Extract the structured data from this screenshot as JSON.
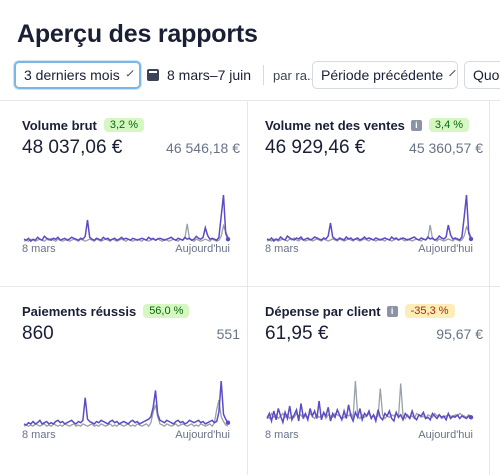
{
  "page": {
    "title": "Aperçu des rapports"
  },
  "filters": {
    "range_value": "3 derniers mois",
    "dates": "8 mars–7 juin",
    "by_label": "par ra...",
    "compare_value": "Période précédente",
    "extra_label": "Quo"
  },
  "colors": {
    "current": "#5b4cc4",
    "previous": "#9aa0aa",
    "positive_bg": "#d7f7c2",
    "negative_bg": "#fcedb9"
  },
  "cards": [
    {
      "title": "Volume brut",
      "info_icon": false,
      "badge": "3,2 %",
      "badge_type": "positive",
      "current": "48 037,06 €",
      "previous": "46 546,18 €",
      "axis_start": "8 mars",
      "axis_end": "Aujourd'hui",
      "series_current": [
        6,
        5,
        7,
        4,
        6,
        5,
        8,
        6,
        5,
        9,
        7,
        6,
        5,
        7,
        6,
        8,
        5,
        6,
        7,
        5,
        6,
        8,
        7,
        6,
        5,
        7,
        6,
        9,
        26,
        8,
        6,
        5,
        7,
        6,
        5,
        8,
        6,
        7,
        5,
        6,
        7,
        5,
        6,
        8,
        6,
        7,
        6,
        5,
        7,
        6,
        5,
        6,
        7,
        6,
        5,
        8,
        6,
        7,
        5,
        6,
        7,
        6,
        5,
        6,
        7,
        8,
        6,
        5,
        7,
        6,
        5,
        8,
        6,
        7,
        5,
        6,
        9,
        7,
        6,
        8,
        18,
        10,
        6,
        7,
        6,
        5,
        8,
        30,
        52,
        12,
        6
      ],
      "series_previous": [
        4,
        5,
        4,
        6,
        5,
        4,
        5,
        6,
        5,
        4,
        6,
        5,
        7,
        5,
        4,
        6,
        5,
        4,
        5,
        6,
        4,
        5,
        6,
        5,
        4,
        6,
        5,
        4,
        5,
        6,
        5,
        4,
        6,
        5,
        4,
        5,
        6,
        5,
        4,
        6,
        5,
        4,
        5,
        6,
        5,
        4,
        6,
        5,
        4,
        5,
        6,
        5,
        4,
        6,
        5,
        4,
        5,
        6,
        5,
        7,
        5,
        4,
        6,
        5,
        4,
        5,
        6,
        5,
        4,
        6,
        5,
        7,
        22,
        6,
        5,
        4,
        6,
        5,
        4,
        5,
        6,
        5,
        4,
        6,
        5,
        4,
        5,
        9,
        20,
        14,
        8
      ]
    },
    {
      "title": "Volume net des ventes",
      "info_icon": true,
      "badge": "3,4 %",
      "badge_type": "positive",
      "current": "46 929,46 €",
      "previous": "45 360,57 €",
      "axis_start": "8 mars",
      "axis_end": "Aujourd'hui",
      "series_current": [
        6,
        5,
        7,
        4,
        6,
        5,
        8,
        6,
        5,
        9,
        7,
        6,
        5,
        7,
        6,
        8,
        5,
        6,
        7,
        5,
        6,
        8,
        7,
        6,
        5,
        7,
        6,
        9,
        22,
        8,
        6,
        5,
        7,
        6,
        5,
        8,
        6,
        7,
        5,
        6,
        7,
        5,
        6,
        8,
        6,
        7,
        6,
        5,
        7,
        6,
        5,
        6,
        7,
        6,
        5,
        8,
        6,
        7,
        5,
        6,
        7,
        6,
        5,
        6,
        7,
        8,
        6,
        5,
        7,
        6,
        5,
        8,
        6,
        7,
        5,
        6,
        9,
        7,
        6,
        8,
        20,
        10,
        6,
        7,
        6,
        5,
        8,
        28,
        50,
        12,
        6
      ],
      "series_previous": [
        4,
        5,
        4,
        6,
        5,
        4,
        5,
        6,
        5,
        4,
        6,
        5,
        7,
        5,
        4,
        6,
        5,
        4,
        5,
        6,
        4,
        5,
        6,
        5,
        4,
        6,
        5,
        4,
        5,
        6,
        5,
        4,
        6,
        5,
        4,
        5,
        6,
        5,
        4,
        6,
        5,
        4,
        5,
        6,
        5,
        4,
        6,
        5,
        4,
        5,
        6,
        5,
        4,
        6,
        5,
        4,
        5,
        6,
        5,
        7,
        5,
        4,
        6,
        5,
        4,
        5,
        6,
        5,
        4,
        6,
        5,
        7,
        20,
        6,
        5,
        4,
        6,
        5,
        4,
        5,
        6,
        5,
        4,
        6,
        5,
        4,
        5,
        9,
        18,
        14,
        8
      ]
    },
    {
      "title": "Paiements réussis",
      "info_icon": false,
      "badge": "56,0 %",
      "badge_type": "positive",
      "current": "860",
      "previous": "551",
      "axis_start": "8 mars",
      "axis_end": "Aujourd'hui",
      "series_current": [
        6,
        5,
        7,
        6,
        8,
        6,
        7,
        9,
        6,
        7,
        8,
        6,
        7,
        6,
        8,
        9,
        7,
        8,
        6,
        7,
        8,
        9,
        7,
        6,
        8,
        7,
        9,
        28,
        10,
        8,
        7,
        6,
        8,
        7,
        9,
        8,
        7,
        6,
        8,
        9,
        7,
        8,
        6,
        7,
        8,
        7,
        6,
        8,
        9,
        7,
        8,
        6,
        7,
        8,
        9,
        10,
        12,
        20,
        34,
        14,
        9,
        8,
        7,
        9,
        8,
        7,
        6,
        8,
        9,
        7,
        8,
        6,
        7,
        9,
        8,
        7,
        8,
        9,
        7,
        8,
        6,
        7,
        8,
        9,
        7,
        8,
        16,
        42,
        14,
        10,
        7
      ],
      "series_previous": [
        4,
        5,
        4,
        5,
        4,
        6,
        5,
        4,
        5,
        6,
        4,
        5,
        4,
        6,
        5,
        4,
        5,
        4,
        6,
        5,
        4,
        5,
        6,
        4,
        5,
        4,
        6,
        5,
        4,
        5,
        6,
        4,
        5,
        4,
        6,
        5,
        4,
        5,
        6,
        4,
        5,
        4,
        6,
        5,
        4,
        5,
        6,
        4,
        5,
        4,
        6,
        5,
        4,
        5,
        6,
        4,
        7,
        16,
        22,
        12,
        6,
        5,
        4,
        6,
        5,
        4,
        5,
        6,
        4,
        5,
        6,
        5,
        4,
        5,
        6,
        4,
        5,
        4,
        6,
        5,
        4,
        5,
        6,
        4,
        7,
        18,
        26,
        12,
        8,
        5,
        4
      ]
    },
    {
      "title": "Dépense par client",
      "info_icon": true,
      "badge": "-35,3 %",
      "badge_type": "negative",
      "current": "61,95 €",
      "previous": "95,67 €",
      "axis_start": "8 mars",
      "axis_end": "Aujourd'hui",
      "series_current": [
        10,
        14,
        8,
        16,
        9,
        18,
        12,
        7,
        15,
        10,
        20,
        9,
        13,
        17,
        8,
        22,
        11,
        14,
        9,
        18,
        12,
        16,
        10,
        24,
        9,
        15,
        12,
        19,
        8,
        14,
        11,
        17,
        13,
        9,
        16,
        10,
        21,
        12,
        8,
        15,
        11,
        18,
        9,
        14,
        12,
        16,
        10,
        13,
        8,
        17,
        11,
        9,
        14,
        12,
        16,
        10,
        8,
        15,
        11,
        13,
        9,
        14,
        12,
        10,
        16,
        11,
        9,
        13,
        12,
        15,
        10,
        11,
        9,
        14,
        12,
        10,
        13,
        11,
        12,
        9,
        14,
        10,
        12,
        11,
        13,
        10,
        12,
        11,
        10,
        12,
        11
      ],
      "series_previous": [
        12,
        10,
        14,
        11,
        13,
        10,
        12,
        14,
        11,
        13,
        10,
        12,
        11,
        14,
        12,
        13,
        10,
        12,
        11,
        14,
        12,
        10,
        13,
        11,
        12,
        14,
        10,
        13,
        12,
        11,
        14,
        13,
        12,
        10,
        11,
        13,
        12,
        14,
        11,
        40,
        12,
        10,
        13,
        11,
        12,
        14,
        10,
        13,
        11,
        12,
        34,
        13,
        10,
        12,
        11,
        13,
        12,
        14,
        11,
        38,
        12,
        10,
        13,
        11,
        12,
        10,
        14,
        13,
        11,
        12,
        10,
        13,
        12,
        11,
        14,
        12,
        13,
        10,
        11,
        12,
        13,
        12,
        11,
        13,
        12,
        14,
        13,
        12,
        11,
        13,
        12
      ]
    }
  ]
}
